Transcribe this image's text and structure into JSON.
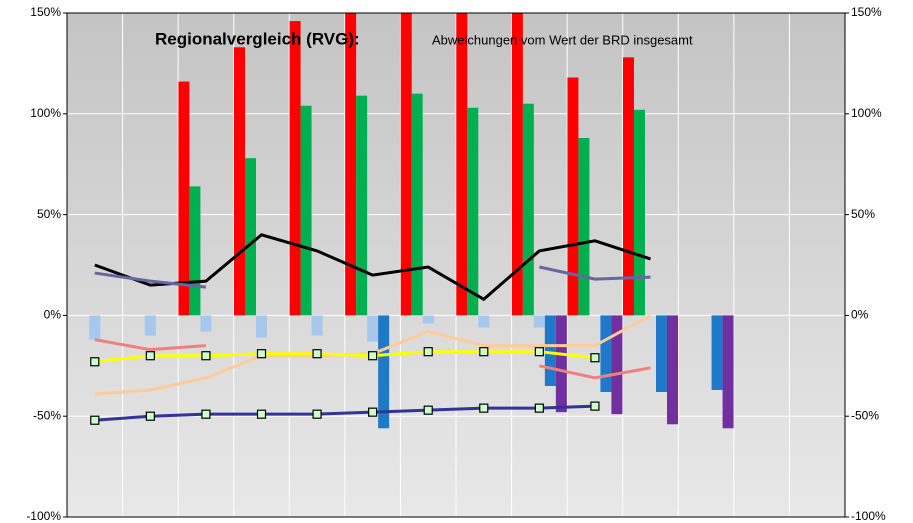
{
  "chart_data": {
    "type": "combo",
    "title": "Regionalvergleich (RVG):",
    "subtitle": "Abweichungen  vom Wert der BRD insgesamt",
    "categories": [
      null,
      null,
      null,
      null,
      null,
      null,
      null,
      null,
      null,
      null,
      null,
      null,
      null,
      null
    ],
    "ylim": [
      -100,
      150
    ],
    "yticks": [
      {
        "value": -100,
        "label": "-100%"
      },
      {
        "value": -50,
        "label": "-50%"
      },
      {
        "value": 0,
        "label": "0%"
      },
      {
        "value": 50,
        "label": "50%"
      },
      {
        "value": 100,
        "label": "100%"
      },
      {
        "value": 150,
        "label": "150%"
      }
    ],
    "y2lim": [
      -100,
      150
    ],
    "y2ticks": [
      {
        "value": -100,
        "label": "-100%"
      },
      {
        "value": -50,
        "label": "-50%"
      },
      {
        "value": 0,
        "label": "0%"
      },
      {
        "value": 50,
        "label": "50%"
      },
      {
        "value": 100,
        "label": "100%"
      },
      {
        "value": 150,
        "label": "150%"
      }
    ],
    "grid": true,
    "series": [
      {
        "type": "bar",
        "color": "#ff0000",
        "values": [
          null,
          null,
          116,
          133,
          146,
          155,
          155,
          155,
          155,
          118,
          128,
          null,
          null,
          null
        ]
      },
      {
        "type": "bar",
        "color": "#00b050",
        "values": [
          null,
          null,
          64,
          78,
          104,
          109,
          110,
          103,
          105,
          88,
          102,
          null,
          null,
          null
        ]
      },
      {
        "type": "bar",
        "color": "#a6c8ec",
        "values": [
          -12,
          -10,
          -8,
          -11,
          -10,
          -13,
          -4,
          -6,
          -6,
          null,
          null,
          null,
          null,
          null
        ]
      },
      {
        "type": "bar",
        "color": "#1f78c8",
        "values": [
          null,
          null,
          null,
          null,
          null,
          -56,
          null,
          null,
          -35,
          -38,
          -38,
          -37,
          null,
          null
        ]
      },
      {
        "type": "bar",
        "color": "#7030a0",
        "values": [
          null,
          null,
          null,
          null,
          null,
          null,
          null,
          null,
          -48,
          -49,
          -54,
          -56,
          null,
          null
        ]
      },
      {
        "type": "line",
        "color": "#000000",
        "values": [
          25,
          15,
          17,
          40,
          32,
          20,
          24,
          8,
          32,
          37,
          28,
          null,
          null,
          null
        ]
      },
      {
        "type": "line",
        "color": "#6666a0",
        "values": [
          21,
          17,
          14,
          null,
          null,
          null,
          null,
          null,
          24,
          18,
          19,
          null,
          null,
          null
        ]
      },
      {
        "type": "line",
        "color": "#f08080",
        "values": [
          -12,
          -17,
          -15,
          null,
          null,
          null,
          null,
          null,
          -25,
          -31,
          -26,
          null,
          null,
          null
        ]
      },
      {
        "type": "line",
        "color": "#ffcc99",
        "values": [
          -39,
          -37,
          -31,
          -20,
          -20,
          -19,
          -8,
          -15,
          -15,
          -15,
          0,
          null,
          null,
          null
        ]
      },
      {
        "type": "line",
        "color": "#ffff00",
        "marker": true,
        "values": [
          -23,
          -20,
          -20,
          -19,
          -19,
          -20,
          -18,
          -18,
          -18,
          -21,
          null,
          null,
          null,
          null
        ]
      },
      {
        "type": "line",
        "color": "#333399",
        "marker": true,
        "values": [
          -52,
          -50,
          -49,
          -49,
          -49,
          -48,
          -47,
          -46,
          -46,
          -45,
          null,
          null,
          null,
          null
        ]
      }
    ]
  }
}
